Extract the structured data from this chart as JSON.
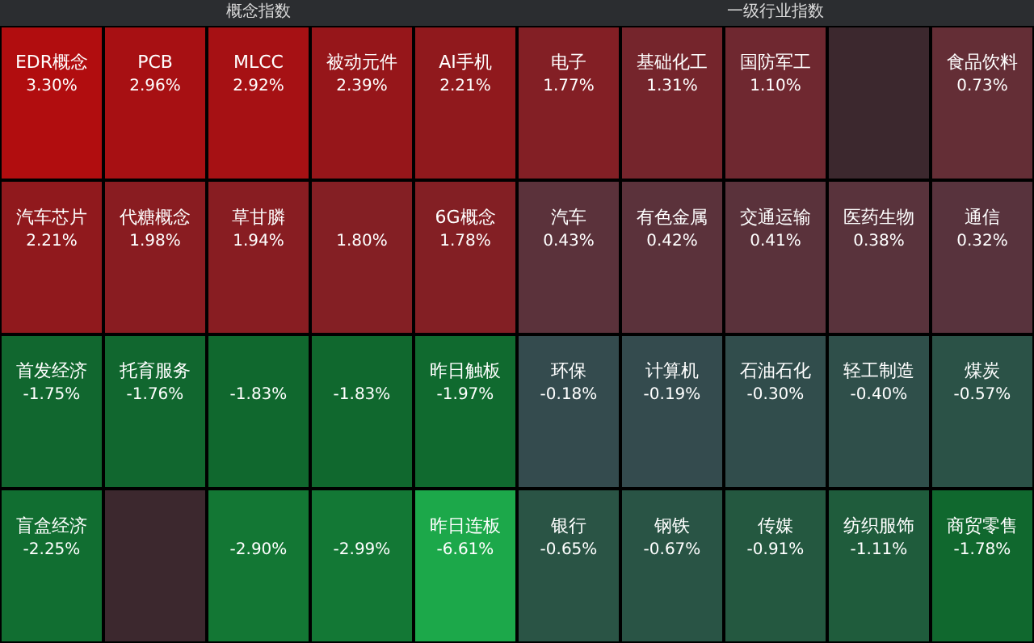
{
  "chart_data": [
    {
      "type": "other",
      "title": "概念指数",
      "categories": [
        "EDR概念",
        "PCB",
        "MLCC",
        "被动元件",
        "AI手机",
        "汽车芯片",
        "代糖概念",
        "草甘膦",
        null,
        "6G概念",
        "首发经济",
        "托育服务",
        null,
        null,
        "昨日触板",
        "盲盒经济",
        null,
        null,
        null,
        "昨日连板"
      ],
      "values": [
        3.3,
        2.96,
        2.92,
        2.39,
        2.21,
        2.21,
        1.98,
        1.94,
        1.8,
        1.78,
        -1.75,
        -1.76,
        -1.83,
        -1.83,
        -1.97,
        -2.25,
        null,
        -2.9,
        -2.99,
        -6.61
      ],
      "value_labels": [
        "3.30%",
        "2.96%",
        "2.92%",
        "2.39%",
        "2.21%",
        "2.21%",
        "1.98%",
        "1.94%",
        "1.80%",
        "1.78%",
        "-1.75%",
        "-1.76%",
        "-1.83%",
        "-1.83%",
        "-1.97%",
        "-2.25%",
        null,
        "-2.90%",
        "-2.99%",
        "-6.61%"
      ]
    },
    {
      "type": "other",
      "title": "一级行业指数",
      "categories": [
        "电子",
        "基础化工",
        "国防军工",
        null,
        "食品饮料",
        "汽车",
        "有色金属",
        "交通运输",
        "医药生物",
        "通信",
        "环保",
        "计算机",
        "石油石化",
        "轻工制造",
        "煤炭",
        "银行",
        "钢铁",
        "传媒",
        "纺织服饰",
        "商贸零售"
      ],
      "values": [
        1.77,
        1.31,
        1.1,
        null,
        0.73,
        0.43,
        0.42,
        0.41,
        0.38,
        0.32,
        -0.18,
        -0.19,
        -0.3,
        -0.4,
        -0.57,
        -0.65,
        -0.67,
        -0.91,
        -1.11,
        -1.78
      ],
      "value_labels": [
        "1.77%",
        "1.31%",
        "1.10%",
        null,
        "0.73%",
        "0.43%",
        "0.42%",
        "0.41%",
        "0.38%",
        "0.32%",
        "-0.18%",
        "-0.19%",
        "-0.30%",
        "-0.40%",
        "-0.57%",
        "-0.65%",
        "-0.67%",
        "-0.91%",
        "-1.11%",
        "-1.78%"
      ]
    }
  ]
}
